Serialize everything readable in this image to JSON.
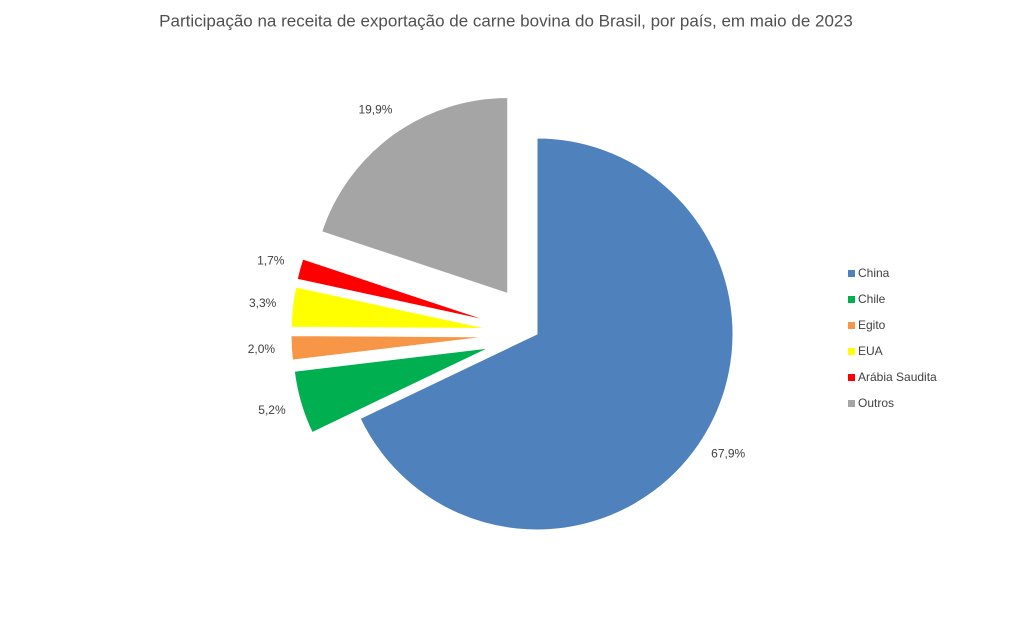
{
  "chart_data": {
    "type": "pie",
    "title": "Participação na receita de exportação de carne bovina do Brasil, por país, em maio de 2023",
    "categories": [
      "China",
      "Chile",
      "Egito",
      "EUA",
      "Arábia Saudita",
      "Outros"
    ],
    "values": [
      67.9,
      5.2,
      2.0,
      3.3,
      1.7,
      19.9
    ],
    "value_labels": [
      "67,9%",
      "5,2%",
      "2,0%",
      "3,3%",
      "1,7%",
      "19,9%"
    ],
    "colors": [
      "#4f81bd",
      "#00b050",
      "#f79646",
      "#ffff00",
      "#ff0000",
      "#a5a5a5"
    ],
    "legend": "right"
  }
}
